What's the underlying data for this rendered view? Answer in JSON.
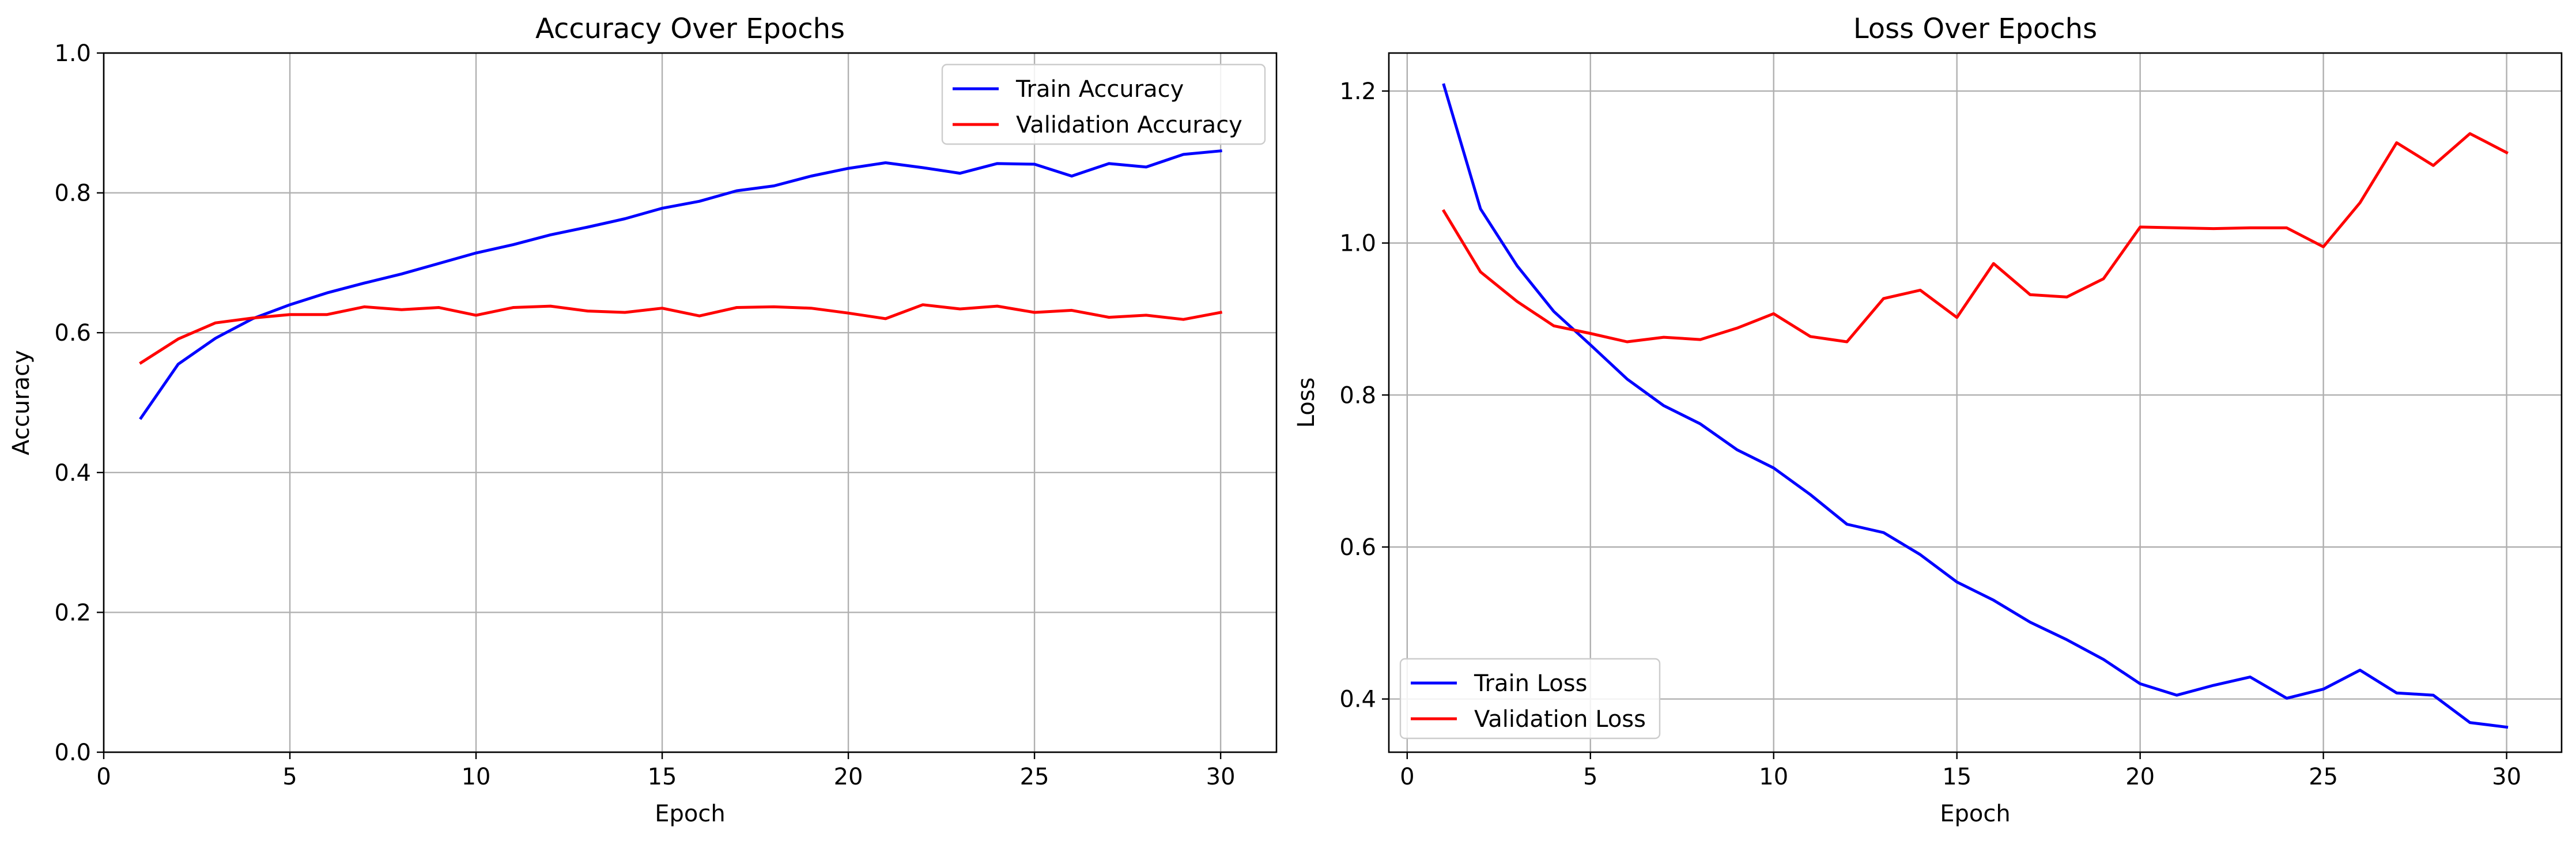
{
  "chart_data": [
    {
      "type": "line",
      "title": "Accuracy Over Epochs",
      "xlabel": "Epoch",
      "ylabel": "Accuracy",
      "xlim": [
        0,
        31.5
      ],
      "ylim": [
        0,
        1.0
      ],
      "xticks": [
        0,
        5,
        10,
        15,
        20,
        25,
        30
      ],
      "xtick_labels": [
        "0",
        "5",
        "10",
        "15",
        "20",
        "25",
        "30"
      ],
      "yticks": [
        0.0,
        0.2,
        0.4,
        0.6,
        0.8,
        1.0
      ],
      "ytick_labels": [
        "0.0",
        "0.2",
        "0.4",
        "0.6",
        "0.8",
        "1.0"
      ],
      "grid": true,
      "legend_position": "top-right",
      "x": [
        1,
        2,
        3,
        4,
        5,
        6,
        7,
        8,
        9,
        10,
        11,
        12,
        13,
        14,
        15,
        16,
        17,
        18,
        19,
        20,
        21,
        22,
        23,
        24,
        25,
        26,
        27,
        28,
        29,
        30
      ],
      "series": [
        {
          "name": "Train Accuracy",
          "color": "#0000ff",
          "values": [
            0.478,
            0.555,
            0.592,
            0.62,
            0.64,
            0.657,
            0.671,
            0.684,
            0.699,
            0.714,
            0.726,
            0.74,
            0.751,
            0.763,
            0.778,
            0.788,
            0.803,
            0.81,
            0.824,
            0.835,
            0.843,
            0.836,
            0.828,
            0.842,
            0.841,
            0.824,
            0.842,
            0.837,
            0.855,
            0.86
          ]
        },
        {
          "name": "Validation Accuracy",
          "color": "#ff0000",
          "values": [
            0.557,
            0.591,
            0.614,
            0.621,
            0.626,
            0.626,
            0.637,
            0.633,
            0.636,
            0.625,
            0.636,
            0.638,
            0.631,
            0.629,
            0.635,
            0.624,
            0.636,
            0.637,
            0.635,
            0.628,
            0.62,
            0.64,
            0.634,
            0.638,
            0.629,
            0.632,
            0.622,
            0.625,
            0.619,
            0.629
          ]
        }
      ]
    },
    {
      "type": "line",
      "title": "Loss Over Epochs",
      "xlabel": "Epoch",
      "ylabel": "Loss",
      "xlim": [
        -0.5,
        31.5
      ],
      "ylim": [
        0.33,
        1.25
      ],
      "xticks": [
        0,
        5,
        10,
        15,
        20,
        25,
        30
      ],
      "xtick_labels": [
        "0",
        "5",
        "10",
        "15",
        "20",
        "25",
        "30"
      ],
      "yticks": [
        0.4,
        0.6,
        0.8,
        1.0,
        1.2
      ],
      "ytick_labels": [
        "0.4",
        "0.6",
        "0.8",
        "1.0",
        "1.2"
      ],
      "grid": true,
      "legend_position": "bottom-left",
      "x": [
        1,
        2,
        3,
        4,
        5,
        6,
        7,
        8,
        9,
        10,
        11,
        12,
        13,
        14,
        15,
        16,
        17,
        18,
        19,
        20,
        21,
        22,
        23,
        24,
        25,
        26,
        27,
        28,
        29,
        30
      ],
      "series": [
        {
          "name": "Train Loss",
          "color": "#0000ff",
          "values": [
            1.208,
            1.045,
            0.97,
            0.91,
            0.866,
            0.821,
            0.786,
            0.762,
            0.728,
            0.704,
            0.669,
            0.63,
            0.619,
            0.59,
            0.554,
            0.53,
            0.501,
            0.478,
            0.452,
            0.42,
            0.405,
            0.418,
            0.429,
            0.401,
            0.413,
            0.438,
            0.408,
            0.405,
            0.369,
            0.363
          ]
        },
        {
          "name": "Validation Loss",
          "color": "#ff0000",
          "values": [
            1.042,
            0.962,
            0.923,
            0.891,
            0.881,
            0.87,
            0.876,
            0.873,
            0.888,
            0.907,
            0.877,
            0.87,
            0.927,
            0.938,
            0.902,
            0.973,
            0.932,
            0.929,
            0.953,
            1.021,
            1.02,
            1.019,
            1.02,
            1.02,
            0.995,
            1.053,
            1.132,
            1.102,
            1.144,
            1.119
          ]
        }
      ]
    }
  ]
}
